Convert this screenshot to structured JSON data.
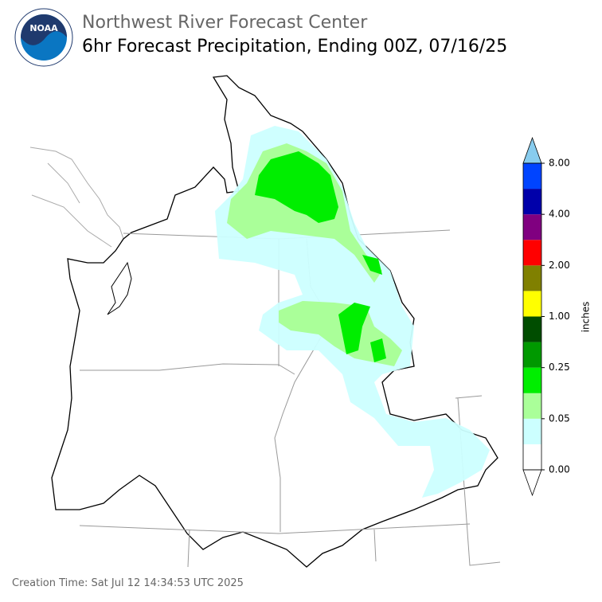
{
  "header": {
    "title": "Northwest River Forecast Center",
    "subtitle": "6hr Forecast Precipitation, Ending 00Z, 07/16/25"
  },
  "colorbar": {
    "label": "inches",
    "ticks": [
      {
        "value": 0,
        "label": "0.00"
      },
      {
        "value": 0.05,
        "label": "0.05"
      },
      {
        "value": 0.25,
        "label": "0.25"
      },
      {
        "value": 1,
        "label": "1.00"
      },
      {
        "value": 2,
        "label": "2.00"
      },
      {
        "value": 4,
        "label": "4.00"
      },
      {
        "value": 8,
        "label": "8.00"
      }
    ],
    "colors": [
      "#ffffff",
      "#ccffff",
      "#aaff99",
      "#00ee00",
      "#009900",
      "#004d00",
      "#ffff00",
      "#808000",
      "#ff0000",
      "#800080",
      "#0000aa",
      "#0044ff"
    ],
    "over_color": "#88ccee",
    "under_color": "#ffffff"
  },
  "footer": {
    "creation_time": "Creation Time: Sat Jul 12 14:34:53 UTC 2025"
  }
}
